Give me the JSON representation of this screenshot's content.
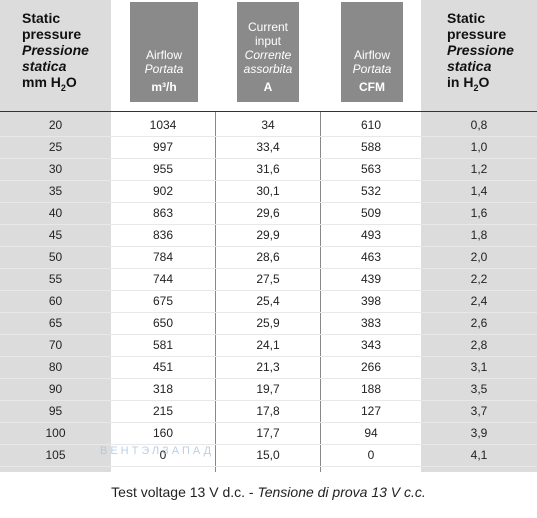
{
  "headers": {
    "static_pressure_left": {
      "line1": "Static",
      "line2": "pressure",
      "line3": "Pressione",
      "line4": "statica",
      "unit_prefix": "mm H",
      "unit_sub": "2",
      "unit_suffix": "O"
    },
    "airflow_m3h": {
      "line1": "Airflow",
      "line2": "Portata",
      "unit": "m³/h"
    },
    "current": {
      "line1": "Current",
      "line2": "input",
      "line3": "Corrente",
      "line4": "assorbita",
      "unit": "A"
    },
    "airflow_cfm": {
      "line1": "Airflow",
      "line2": "Portata",
      "unit": "CFM"
    },
    "static_pressure_right": {
      "line1": "Static",
      "line2": "pressure",
      "line3": "Pressione",
      "line4": "statica",
      "unit_prefix": "in H",
      "unit_sub": "2",
      "unit_suffix": "O"
    }
  },
  "rows": [
    {
      "mm": "20",
      "m3h": "1034",
      "a": "34",
      "cfm": "610",
      "inch": "0,8"
    },
    {
      "mm": "25",
      "m3h": "997",
      "a": "33,4",
      "cfm": "588",
      "inch": "1,0"
    },
    {
      "mm": "30",
      "m3h": "955",
      "a": "31,6",
      "cfm": "563",
      "inch": "1,2"
    },
    {
      "mm": "35",
      "m3h": "902",
      "a": "30,1",
      "cfm": "532",
      "inch": "1,4"
    },
    {
      "mm": "40",
      "m3h": "863",
      "a": "29,6",
      "cfm": "509",
      "inch": "1,6"
    },
    {
      "mm": "45",
      "m3h": "836",
      "a": "29,9",
      "cfm": "493",
      "inch": "1,8"
    },
    {
      "mm": "50",
      "m3h": "784",
      "a": "28,6",
      "cfm": "463",
      "inch": "2,0"
    },
    {
      "mm": "55",
      "m3h": "744",
      "a": "27,5",
      "cfm": "439",
      "inch": "2,2"
    },
    {
      "mm": "60",
      "m3h": "675",
      "a": "25,4",
      "cfm": "398",
      "inch": "2,4"
    },
    {
      "mm": "65",
      "m3h": "650",
      "a": "25,9",
      "cfm": "383",
      "inch": "2,6"
    },
    {
      "mm": "70",
      "m3h": "581",
      "a": "24,1",
      "cfm": "343",
      "inch": "2,8"
    },
    {
      "mm": "80",
      "m3h": "451",
      "a": "21,3",
      "cfm": "266",
      "inch": "3,1"
    },
    {
      "mm": "90",
      "m3h": "318",
      "a": "19,7",
      "cfm": "188",
      "inch": "3,5"
    },
    {
      "mm": "95",
      "m3h": "215",
      "a": "17,8",
      "cfm": "127",
      "inch": "3,7"
    },
    {
      "mm": "100",
      "m3h": "160",
      "a": "17,7",
      "cfm": "94",
      "inch": "3,9"
    },
    {
      "mm": "105",
      "m3h": "0",
      "a": "15,0",
      "cfm": "0",
      "inch": "4,1"
    }
  ],
  "footnote": {
    "normal": "Test voltage 13 V d.c. - ",
    "italic": "Tensione di prova 13 V c.c."
  },
  "watermark": "ВЕНТЭЛЗАПАД",
  "colors": {
    "header_dark": "#8a8a8a",
    "column_gray": "#dcdcdc"
  }
}
